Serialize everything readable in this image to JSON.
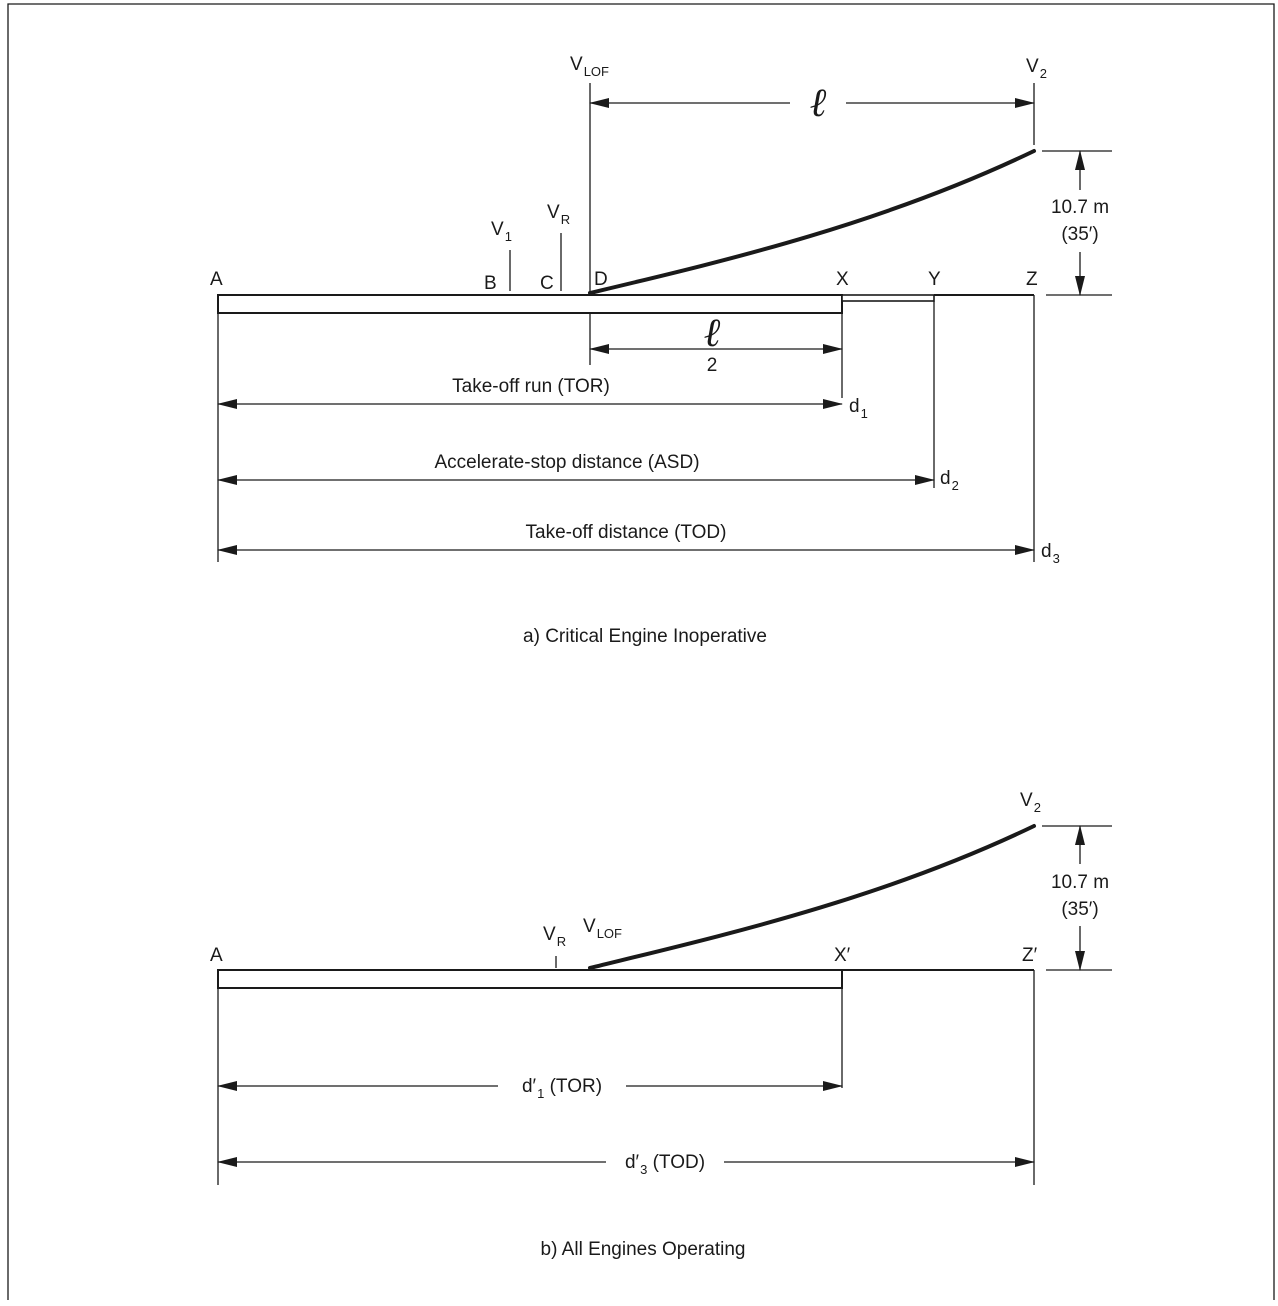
{
  "panel_a": {
    "caption": "a)  Critical Engine Inoperative",
    "points": {
      "A": "A",
      "B": "B",
      "C": "C",
      "D": "D",
      "X": "X",
      "Y": "Y",
      "Z": "Z"
    },
    "speeds": {
      "v1": {
        "main": "V",
        "sub": "1"
      },
      "vr": {
        "main": "V",
        "sub": "R"
      },
      "vlof": {
        "main": "V",
        "sub": "LOF"
      },
      "v2": {
        "main": "V",
        "sub": "2"
      }
    },
    "ell": "ℓ",
    "half_denominator": "2",
    "height_m": "10.7 m",
    "height_ft": "(35′)",
    "tor": {
      "text": "Take-off run (TOR)",
      "d_main": "d",
      "d_sub": "1"
    },
    "asd": {
      "text": "Accelerate-stop distance (ASD)",
      "d_main": "d",
      "d_sub": "2"
    },
    "tod": {
      "text": "Take-off distance (TOD)",
      "d_main": "d",
      "d_sub": "3"
    }
  },
  "panel_b": {
    "caption": "b)  All Engines Operating",
    "points": {
      "A": "A",
      "X": "X′",
      "Z": "Z′"
    },
    "speeds": {
      "vr": {
        "main": "V",
        "sub": "R"
      },
      "vlof": {
        "main": "V",
        "sub": "LOF"
      },
      "v2": {
        "main": "V",
        "sub": "2"
      }
    },
    "height_m": "10.7 m",
    "height_ft": "(35′)",
    "tor": {
      "pre": "d′",
      "sub": "1",
      "post": " (TOR)"
    },
    "tod": {
      "pre": "d′",
      "sub": "3",
      "post": " (TOD)"
    }
  }
}
